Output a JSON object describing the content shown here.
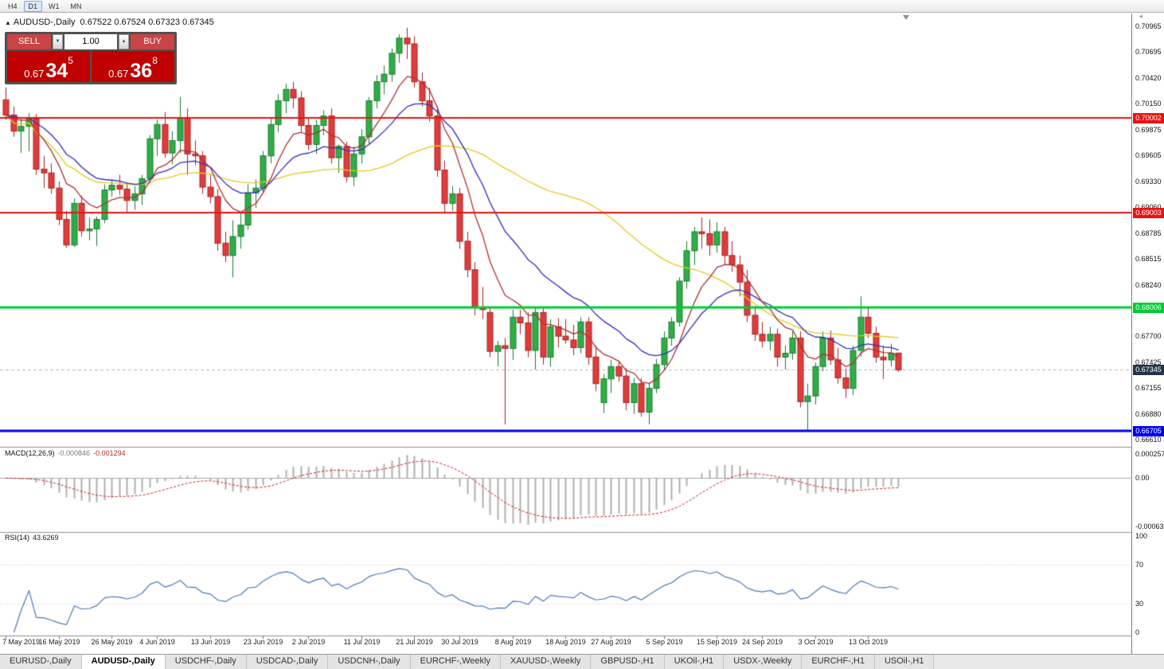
{
  "icons": {
    "maximize": "▲",
    "spinner_up": "▲",
    "spinner_down": "▼",
    "scale_arrow": "▲"
  },
  "toolbar": {
    "timeframes": [
      {
        "label": "H4",
        "active": false
      },
      {
        "label": "D1",
        "active": true
      },
      {
        "label": "W1",
        "active": false
      },
      {
        "label": "MN",
        "active": false
      }
    ]
  },
  "chart": {
    "symbol_title": "AUDUSD-,Daily",
    "ohlc_text": "0.67522 0.67524 0.67323 0.67345",
    "trade_panel": {
      "sell_label": "SELL",
      "buy_label": "BUY",
      "volume": "1.00",
      "sell_prefix": "0.67",
      "sell_big": "34",
      "sell_sup": "5",
      "buy_prefix": "0.67",
      "buy_big": "36",
      "buy_sup": "8"
    }
  },
  "chart_data": {
    "type": "candlestick",
    "symbol": "AUDUSD-,Daily",
    "current_bar_ohlc": [
      0.67522,
      0.67524,
      0.67323,
      0.67345
    ],
    "y_map": {
      "top_price": 0.70965,
      "bottom_price": 0.6661
    },
    "y_ticks": [
      "0.70965",
      "0.70695",
      "0.70420",
      "0.70150",
      "0.69875",
      "0.69605",
      "0.69330",
      "0.69060",
      "0.68785",
      "0.68515",
      "0.68240",
      "0.67970",
      "0.67700",
      "0.67425",
      "0.67155",
      "0.66880",
      "0.66610"
    ],
    "hlines": [
      {
        "price": 0.70002,
        "label": "0.70002",
        "color": "#ee1111",
        "width": 2
      },
      {
        "price": 0.69003,
        "label": "0.69003",
        "color": "#ee1111",
        "width": 2
      },
      {
        "price": 0.68006,
        "label": "0.68006",
        "color": "#00cc33",
        "width": 3
      },
      {
        "price": 0.66705,
        "label": "0.66705",
        "color": "#0000ee",
        "width": 3
      }
    ],
    "bid": {
      "price": 0.67345,
      "label": "0.67345",
      "tag_color": "#233446",
      "line_color": "#b8b8b8"
    },
    "candle_colors": {
      "up_fill": "#2fae47",
      "up_stroke": "#1d7c31",
      "down_fill": "#e23b3b",
      "down_stroke": "#a32525"
    },
    "ma_lines": [
      {
        "type": "sma",
        "period": 45,
        "color": "#e6c822"
      },
      {
        "type": "ema",
        "period": 18,
        "color": "#2e2ec0"
      },
      {
        "type": "ema",
        "period": 8,
        "color": "#b03030"
      }
    ],
    "date_labels": [
      {
        "i": 0,
        "t": "7 May 2019"
      },
      {
        "i": 7,
        "t": "16 May 2019"
      },
      {
        "i": 14,
        "t": "26 May 2019"
      },
      {
        "i": 20,
        "t": "4 Jun 2019"
      },
      {
        "i": 27,
        "t": "13 Jun 2019"
      },
      {
        "i": 34,
        "t": "23 Jun 2019"
      },
      {
        "i": 40,
        "t": "2 Jul 2019"
      },
      {
        "i": 47,
        "t": "11 Jul 2019"
      },
      {
        "i": 54,
        "t": "21 Jul 2019"
      },
      {
        "i": 60,
        "t": "30 Jul 2019"
      },
      {
        "i": 67,
        "t": "8 Aug 2019"
      },
      {
        "i": 74,
        "t": "18 Aug 2019"
      },
      {
        "i": 80,
        "t": "27 Aug 2019"
      },
      {
        "i": 87,
        "t": "5 Sep 2019"
      },
      {
        "i": 94,
        "t": "15 Sep 2019"
      },
      {
        "i": 100,
        "t": "24 Sep 2019"
      },
      {
        "i": 107,
        "t": "3 Oct 2019"
      },
      {
        "i": 114,
        "t": "13 Oct 2019"
      }
    ],
    "candles": [
      [
        0.7019,
        0.7032,
        0.6998,
        0.7003
      ],
      [
        0.7003,
        0.7012,
        0.698,
        0.6986
      ],
      [
        0.6986,
        0.7,
        0.6963,
        0.6991
      ],
      [
        0.6991,
        0.7005,
        0.6965,
        0.6999
      ],
      [
        0.6999,
        0.7004,
        0.694,
        0.6946
      ],
      [
        0.6946,
        0.696,
        0.6926,
        0.6942
      ],
      [
        0.6942,
        0.6952,
        0.692,
        0.6926
      ],
      [
        0.6926,
        0.6933,
        0.6887,
        0.6893
      ],
      [
        0.6893,
        0.6902,
        0.6863,
        0.6866
      ],
      [
        0.6866,
        0.6915,
        0.6864,
        0.691
      ],
      [
        0.691,
        0.6918,
        0.6875,
        0.6881
      ],
      [
        0.6881,
        0.6895,
        0.6871,
        0.6883
      ],
      [
        0.6883,
        0.6896,
        0.6865,
        0.6893
      ],
      [
        0.6893,
        0.693,
        0.6889,
        0.6924
      ],
      [
        0.6924,
        0.6935,
        0.6917,
        0.6929
      ],
      [
        0.6929,
        0.694,
        0.6919,
        0.6925
      ],
      [
        0.6925,
        0.6932,
        0.69,
        0.6913
      ],
      [
        0.6913,
        0.6928,
        0.6903,
        0.692
      ],
      [
        0.692,
        0.694,
        0.6908,
        0.6936
      ],
      [
        0.6936,
        0.6982,
        0.6931,
        0.6978
      ],
      [
        0.6978,
        0.6998,
        0.696,
        0.6993
      ],
      [
        0.6993,
        0.7006,
        0.6958,
        0.6963
      ],
      [
        0.6963,
        0.6986,
        0.6951,
        0.6976
      ],
      [
        0.6976,
        0.7022,
        0.6963,
        0.7
      ],
      [
        0.7,
        0.701,
        0.694,
        0.6962
      ],
      [
        0.6962,
        0.6976,
        0.695,
        0.696
      ],
      [
        0.696,
        0.6965,
        0.692,
        0.6927
      ],
      [
        0.6927,
        0.694,
        0.691,
        0.6917
      ],
      [
        0.6917,
        0.6925,
        0.686,
        0.6868
      ],
      [
        0.6868,
        0.688,
        0.6848,
        0.6855
      ],
      [
        0.6855,
        0.6892,
        0.6832,
        0.6875
      ],
      [
        0.6875,
        0.69,
        0.6862,
        0.6887
      ],
      [
        0.6887,
        0.693,
        0.6882,
        0.6921
      ],
      [
        0.6921,
        0.6935,
        0.6905,
        0.6926
      ],
      [
        0.6926,
        0.6965,
        0.6921,
        0.696
      ],
      [
        0.696,
        0.7,
        0.6952,
        0.6993
      ],
      [
        0.6993,
        0.7025,
        0.6985,
        0.7018
      ],
      [
        0.7018,
        0.7036,
        0.7005,
        0.703
      ],
      [
        0.703,
        0.7038,
        0.701,
        0.7021
      ],
      [
        0.7021,
        0.7028,
        0.6985,
        0.6992
      ],
      [
        0.6992,
        0.7,
        0.6966,
        0.6972
      ],
      [
        0.6972,
        0.6998,
        0.6962,
        0.6992
      ],
      [
        0.6992,
        0.7008,
        0.6982,
        0.7002
      ],
      [
        0.7002,
        0.701,
        0.6952,
        0.6958
      ],
      [
        0.6958,
        0.6972,
        0.6942,
        0.697
      ],
      [
        0.697,
        0.6975,
        0.6932,
        0.6938
      ],
      [
        0.6938,
        0.697,
        0.6928,
        0.6962
      ],
      [
        0.6962,
        0.6988,
        0.6952,
        0.698
      ],
      [
        0.698,
        0.7022,
        0.6972,
        0.7018
      ],
      [
        0.7018,
        0.7045,
        0.701,
        0.7038
      ],
      [
        0.7038,
        0.7055,
        0.7025,
        0.7046
      ],
      [
        0.7046,
        0.7073,
        0.7038,
        0.7068
      ],
      [
        0.7068,
        0.7088,
        0.7058,
        0.7084
      ],
      [
        0.7084,
        0.7095,
        0.7062,
        0.7078
      ],
      [
        0.7078,
        0.7086,
        0.7032,
        0.7038
      ],
      [
        0.7038,
        0.7048,
        0.7012,
        0.7018
      ],
      [
        0.7018,
        0.7032,
        0.6996,
        0.7002
      ],
      [
        0.7002,
        0.7012,
        0.6938,
        0.6945
      ],
      [
        0.6945,
        0.6955,
        0.69,
        0.691
      ],
      [
        0.691,
        0.6928,
        0.6902,
        0.692
      ],
      [
        0.692,
        0.6926,
        0.6862,
        0.687
      ],
      [
        0.687,
        0.688,
        0.6832,
        0.684
      ],
      [
        0.684,
        0.6848,
        0.6792,
        0.68
      ],
      [
        0.68,
        0.6822,
        0.6788,
        0.6798
      ],
      [
        0.6795,
        0.68,
        0.6748,
        0.6754
      ],
      [
        0.6754,
        0.6765,
        0.6738,
        0.676
      ],
      [
        0.676,
        0.6768,
        0.6677,
        0.6757
      ],
      [
        0.6757,
        0.6798,
        0.6745,
        0.679
      ],
      [
        0.679,
        0.6798,
        0.6772,
        0.6784
      ],
      [
        0.6784,
        0.6795,
        0.6748,
        0.6755
      ],
      [
        0.6755,
        0.68,
        0.6735,
        0.6795
      ],
      [
        0.6795,
        0.68,
        0.674,
        0.6748
      ],
      [
        0.6748,
        0.6788,
        0.6738,
        0.678
      ],
      [
        0.678,
        0.6789,
        0.6758,
        0.677
      ],
      [
        0.677,
        0.6788,
        0.6762,
        0.6766
      ],
      [
        0.6766,
        0.6782,
        0.675,
        0.6758
      ],
      [
        0.6758,
        0.679,
        0.6752,
        0.6785
      ],
      [
        0.6785,
        0.679,
        0.674,
        0.6748
      ],
      [
        0.6748,
        0.676,
        0.6712,
        0.672
      ],
      [
        0.67,
        0.673,
        0.6689,
        0.6725
      ],
      [
        0.6725,
        0.6745,
        0.671,
        0.6738
      ],
      [
        0.6738,
        0.6744,
        0.6722,
        0.6728
      ],
      [
        0.6728,
        0.6736,
        0.6692,
        0.67
      ],
      [
        0.67,
        0.6726,
        0.6688,
        0.672
      ],
      [
        0.672,
        0.6726,
        0.6685,
        0.669
      ],
      [
        0.669,
        0.672,
        0.6677,
        0.6715
      ],
      [
        0.6715,
        0.6746,
        0.671,
        0.674
      ],
      [
        0.674,
        0.6775,
        0.6735,
        0.6768
      ],
      [
        0.6768,
        0.679,
        0.676,
        0.6785
      ],
      [
        0.6785,
        0.6832,
        0.678,
        0.6828
      ],
      [
        0.6828,
        0.687,
        0.682,
        0.686
      ],
      [
        0.686,
        0.6885,
        0.6845,
        0.688
      ],
      [
        0.688,
        0.6895,
        0.6862,
        0.6878
      ],
      [
        0.6878,
        0.6893,
        0.6855,
        0.6866
      ],
      [
        0.6866,
        0.689,
        0.6858,
        0.688
      ],
      [
        0.688,
        0.6885,
        0.6845,
        0.6855
      ],
      [
        0.6855,
        0.687,
        0.6838,
        0.6845
      ],
      [
        0.6845,
        0.6855,
        0.6812,
        0.6827
      ],
      [
        0.6827,
        0.684,
        0.6785,
        0.6792
      ],
      [
        0.6792,
        0.68,
        0.6765,
        0.6772
      ],
      [
        0.6772,
        0.6785,
        0.6758,
        0.6765
      ],
      [
        0.6765,
        0.678,
        0.6755,
        0.6772
      ],
      [
        0.6772,
        0.6778,
        0.6738,
        0.6748
      ],
      [
        0.6748,
        0.676,
        0.6735,
        0.6752
      ],
      [
        0.6752,
        0.6775,
        0.6745,
        0.6768
      ],
      [
        0.6768,
        0.6775,
        0.6695,
        0.6701
      ],
      [
        0.6701,
        0.672,
        0.6671,
        0.6707
      ],
      [
        0.6707,
        0.6742,
        0.6698,
        0.6738
      ],
      [
        0.6738,
        0.6775,
        0.6733,
        0.6768
      ],
      [
        0.6768,
        0.6776,
        0.674,
        0.6745
      ],
      [
        0.6745,
        0.6758,
        0.672,
        0.6726
      ],
      [
        0.6726,
        0.6736,
        0.6705,
        0.6715
      ],
      [
        0.6715,
        0.676,
        0.6708,
        0.6755
      ],
      [
        0.6755,
        0.6812,
        0.6748,
        0.679
      ],
      [
        0.679,
        0.68,
        0.6768,
        0.6773
      ],
      [
        0.6773,
        0.678,
        0.6742,
        0.6748
      ],
      [
        0.6748,
        0.676,
        0.6725,
        0.6745
      ],
      [
        0.6745,
        0.6762,
        0.6738,
        0.6752
      ],
      [
        0.67522,
        0.67524,
        0.67323,
        0.67345
      ]
    ]
  },
  "macd": {
    "name": "MACD(12,26,9)",
    "main_value": "-0.000846",
    "signal_value": "-0.001294",
    "scale_top": "0.0002574",
    "scale_zero": "0.00",
    "scale_bottom": "-0.0006326",
    "fast": 12,
    "slow": 26,
    "signal": 9,
    "hist_color": "#b0b0b0",
    "signal_color": "#cc2222"
  },
  "rsi": {
    "name": "RSI(14)",
    "value": "43.6269",
    "period": 14,
    "scale": [
      "100",
      "70",
      "30",
      "0"
    ],
    "levels": [
      70,
      30
    ],
    "line_color": "#4a78b5"
  },
  "tabs": [
    {
      "label": "EURUSD-,Daily",
      "active": false
    },
    {
      "label": "AUDUSD-,Daily",
      "active": true
    },
    {
      "label": "USDCHF-,Daily",
      "active": false
    },
    {
      "label": "USDCAD-,Daily",
      "active": false
    },
    {
      "label": "USDCNH-,Daily",
      "active": false
    },
    {
      "label": "EURCHF-,Weekly",
      "active": false
    },
    {
      "label": "XAUUSD-,Weekly",
      "active": false
    },
    {
      "label": "GBPUSD-,H1",
      "active": false
    },
    {
      "label": "UKOil-,H1",
      "active": false
    },
    {
      "label": "USDX-,Weekly",
      "active": false
    },
    {
      "label": "EURCHF-,H1",
      "active": false
    },
    {
      "label": "USOil-,H1",
      "active": false
    }
  ]
}
